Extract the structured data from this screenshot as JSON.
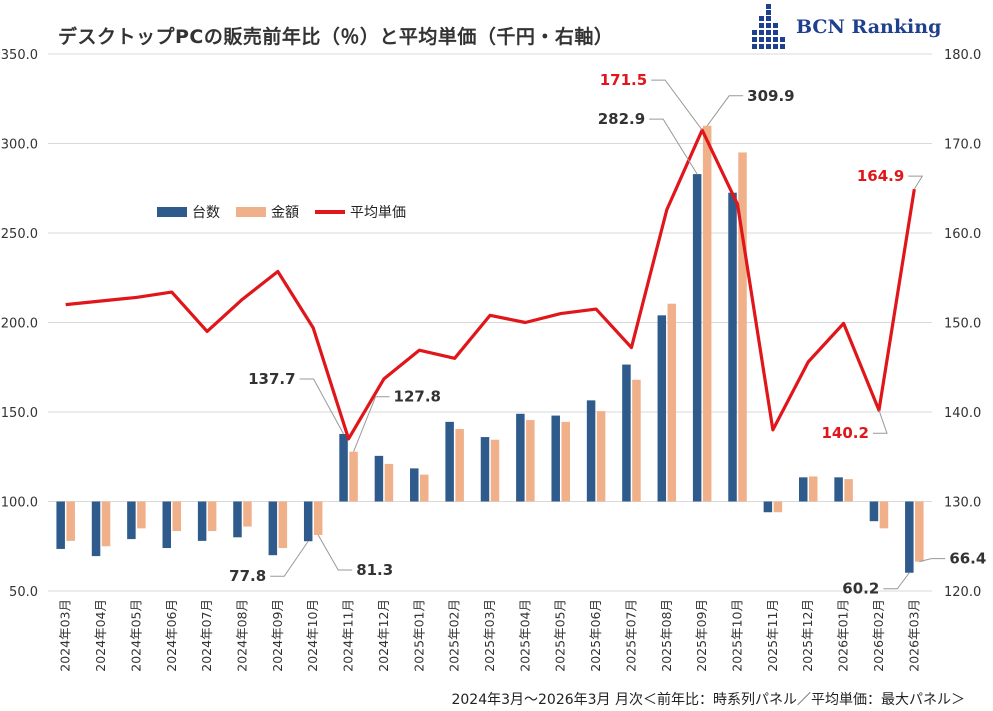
{
  "title": "デスクトップPCの販売前年比（％）と平均単価（千円・右軸）",
  "logo": {
    "text": "BCN Ranking",
    "icon": "bcn-grid-logo-icon"
  },
  "footer": "2024年3月～2026年3月 月次＜前年比：時系列パネル／平均単価：最大パネル＞",
  "colors": {
    "units": "#2e5b8c",
    "amount": "#f0b08a",
    "avg": "#e0161b",
    "label": "#333333",
    "avg_label": "#e0161b"
  },
  "chart_data": {
    "type": "bar+line",
    "categories": [
      "2024年03月",
      "2024年04月",
      "2024年05月",
      "2024年06月",
      "2024年07月",
      "2024年08月",
      "2024年09月",
      "2024年10月",
      "2024年11月",
      "2024年12月",
      "2025年01月",
      "2025年02月",
      "2025年03月",
      "2025年04月",
      "2025年05月",
      "2025年06月",
      "2025年07月",
      "2025年08月",
      "2025年09月",
      "2025年10月",
      "2025年11月",
      "2025年12月",
      "2026年01月",
      "2026年02月",
      "2026年03月"
    ],
    "ylim": [
      50,
      350
    ],
    "yticks": [
      "50.0",
      "100.0",
      "150.0",
      "200.0",
      "250.0",
      "300.0",
      "350.0"
    ],
    "y2lim": [
      120,
      180
    ],
    "y2ticks": [
      "120.0",
      "130.0",
      "140.0",
      "150.0",
      "160.0",
      "170.0",
      "180.0"
    ],
    "baseline": 100,
    "legend": {
      "position": "upper-left",
      "entries": [
        "台数",
        "金額",
        "平均単価"
      ]
    },
    "series": [
      {
        "name": "台数",
        "type": "bar",
        "axis": "left",
        "values": [
          73.5,
          69.5,
          79,
          74,
          78,
          80,
          70,
          77.8,
          137.7,
          125.5,
          118.5,
          144.5,
          136,
          149,
          148,
          156.5,
          176.5,
          204,
          282.9,
          272.5,
          94,
          113.5,
          113.5,
          89,
          60.2
        ]
      },
      {
        "name": "金額",
        "type": "bar",
        "axis": "left",
        "values": [
          78,
          75,
          85,
          83.5,
          83.5,
          86,
          74,
          81.3,
          127.8,
          121,
          115,
          140.5,
          134.5,
          145.5,
          144.5,
          150.5,
          168,
          210.5,
          309.9,
          295,
          94,
          114,
          112.5,
          85,
          66.4
        ]
      },
      {
        "name": "平均単価",
        "type": "line",
        "axis": "right",
        "values": [
          152,
          152.4,
          152.8,
          153.4,
          149,
          152.6,
          155.7,
          149.4,
          137,
          143.7,
          146.9,
          146,
          150.8,
          150,
          151,
          151.5,
          147.2,
          162.6,
          171.5,
          163.2,
          138,
          145.6,
          149.9,
          140.2,
          164.9
        ]
      }
    ],
    "annotations": [
      {
        "text": "137.7",
        "series": 0,
        "index": 8
      },
      {
        "text": "127.8",
        "series": 1,
        "index": 8
      },
      {
        "text": "77.8",
        "series": 0,
        "index": 7
      },
      {
        "text": "81.3",
        "series": 1,
        "index": 7
      },
      {
        "text": "282.9",
        "series": 0,
        "index": 18
      },
      {
        "text": "309.9",
        "series": 1,
        "index": 18
      },
      {
        "text": "171.5",
        "series": 2,
        "index": 18
      },
      {
        "text": "164.9",
        "series": 2,
        "index": 24
      },
      {
        "text": "140.2",
        "series": 2,
        "index": 23
      },
      {
        "text": "60.2",
        "series": 0,
        "index": 24
      },
      {
        "text": "66.4",
        "series": 1,
        "index": 24
      }
    ]
  }
}
